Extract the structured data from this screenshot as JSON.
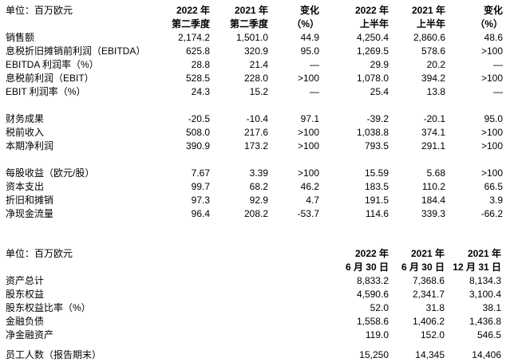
{
  "page": {
    "background_color": "#ffffff",
    "text_color": "#000000"
  },
  "income_table": {
    "unit_label": "单位：百万欧元",
    "columns": [
      {
        "line1": "2022 年",
        "line2": "第二季度"
      },
      {
        "line1": "2021 年",
        "line2": "第二季度"
      },
      {
        "line1": "变化",
        "line2": "（%）"
      },
      {
        "line1": "2022 年",
        "line2": "上半年"
      },
      {
        "line1": "2021 年",
        "line2": "上半年"
      },
      {
        "line1": "变化",
        "line2": "（%）"
      }
    ],
    "rows": [
      {
        "label": "销售额",
        "values": [
          "2,174.2",
          "1,501.0",
          "44.9",
          "4,250.4",
          "2,860.6",
          "48.6"
        ]
      },
      {
        "label": "息税折旧摊销前利润（EBITDA）",
        "values": [
          "625.8",
          "320.9",
          "95.0",
          "1,269.5",
          "578.6",
          ">100"
        ]
      },
      {
        "label": "EBITDA 利润率（%）",
        "values": [
          "28.8",
          "21.4",
          "—",
          "29.9",
          "20.2",
          "—"
        ]
      },
      {
        "label": "息税前利润（EBIT）",
        "values": [
          "528.5",
          "228.0",
          ">100",
          "1,078.0",
          "394.2",
          ">100"
        ]
      },
      {
        "label": "EBIT 利润率（%）",
        "values": [
          "24.3",
          "15.2",
          "—",
          "25.4",
          "13.8",
          "—"
        ]
      },
      {
        "spacer": true
      },
      {
        "label": "财务成果",
        "values": [
          "-20.5",
          "-10.4",
          "97.1",
          "-39.2",
          "-20.1",
          "95.0"
        ]
      },
      {
        "label": "税前收入",
        "values": [
          "508.0",
          "217.6",
          ">100",
          "1,038.8",
          "374.1",
          ">100"
        ]
      },
      {
        "label": "本期净利润",
        "values": [
          "390.9",
          "173.2",
          ">100",
          "793.5",
          "291.1",
          ">100"
        ]
      },
      {
        "spacer": true
      },
      {
        "label": "每股收益（欧元/股）",
        "values": [
          "7.67",
          "3.39",
          ">100",
          "15.59",
          "5.68",
          ">100"
        ]
      },
      {
        "label": "资本支出",
        "values": [
          "99.7",
          "68.2",
          "46.2",
          "183.5",
          "110.2",
          "66.5"
        ]
      },
      {
        "label": "折旧和摊销",
        "values": [
          "97.3",
          "92.9",
          "4.7",
          "191.5",
          "184.4",
          "3.9"
        ]
      },
      {
        "label": "净现金流量",
        "values": [
          "96.4",
          "208.2",
          "-53.7",
          "114.6",
          "339.3",
          "-66.2"
        ]
      }
    ]
  },
  "balance_table": {
    "unit_label": "单位：百万欧元",
    "columns": [
      {
        "line1": "2022 年",
        "line2": "6 月 30 日"
      },
      {
        "line1": "2021 年",
        "line2": "6 月 30 日"
      },
      {
        "line1": "2021 年",
        "line2": "12 月 31 日"
      }
    ],
    "rows": [
      {
        "label": "资产总计",
        "values": [
          "8,833.2",
          "7,368.6",
          "8,134.3"
        ]
      },
      {
        "label": "股东权益",
        "values": [
          "4,590.6",
          "2,341.7",
          "3,100.4"
        ]
      },
      {
        "label": "股东权益比率（%）",
        "values": [
          "52.0",
          "31.8",
          "38.1"
        ]
      },
      {
        "label": "金融负债",
        "values": [
          "1,558.6",
          "1,406.2",
          "1,436.8"
        ]
      },
      {
        "label": "净金融资产",
        "values": [
          "119.0",
          "152.0",
          "546.5"
        ]
      },
      {
        "spacer": true
      },
      {
        "label": "员工人数（报告期末）",
        "values": [
          "15,250",
          "14,345",
          "14,406"
        ]
      }
    ]
  }
}
